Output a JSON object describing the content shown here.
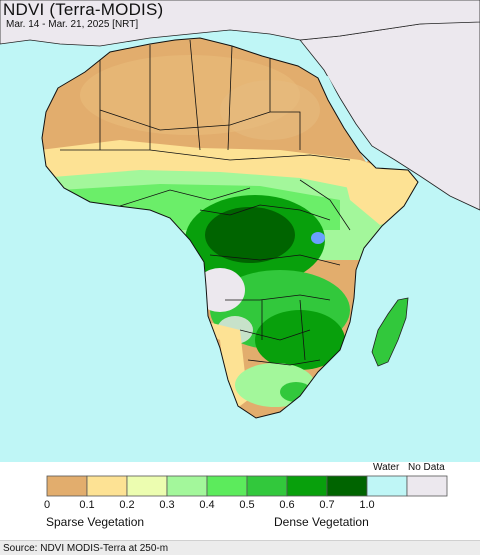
{
  "title": "NDVI (Terra-MODIS)",
  "subtitle": "Mar. 14 - Mar. 21, 2025 [NRT]",
  "legend": {
    "bins": [
      {
        "color": "#e2ad6d"
      },
      {
        "color": "#fde294"
      },
      {
        "color": "#ecfdb0"
      },
      {
        "color": "#a3f79b"
      },
      {
        "color": "#5ceb5c"
      },
      {
        "color": "#32c83c"
      },
      {
        "color": "#08a00c"
      },
      {
        "color": "#006400"
      }
    ],
    "water": {
      "label": "Water",
      "color": "#bff6f6"
    },
    "nodata": {
      "label": "No Data",
      "color": "#ece8ee"
    },
    "ticks": [
      "0",
      "0.1",
      "0.2",
      "0.3",
      "0.4",
      "0.5",
      "0.6",
      "0.7",
      "1.0"
    ],
    "low_label": "Sparse Vegetation",
    "high_label": "Dense Vegetation"
  },
  "source": "Source: NDVI MODIS-Terra at 250-m",
  "colors": {
    "ocean": "#bff6f6",
    "desert": "#e2ad6d",
    "sahel": "#fde294",
    "savanna": "#a3f79b",
    "forest": "#08a00c",
    "dense_forest": "#006400",
    "nodata_land": "#ece8ee"
  }
}
